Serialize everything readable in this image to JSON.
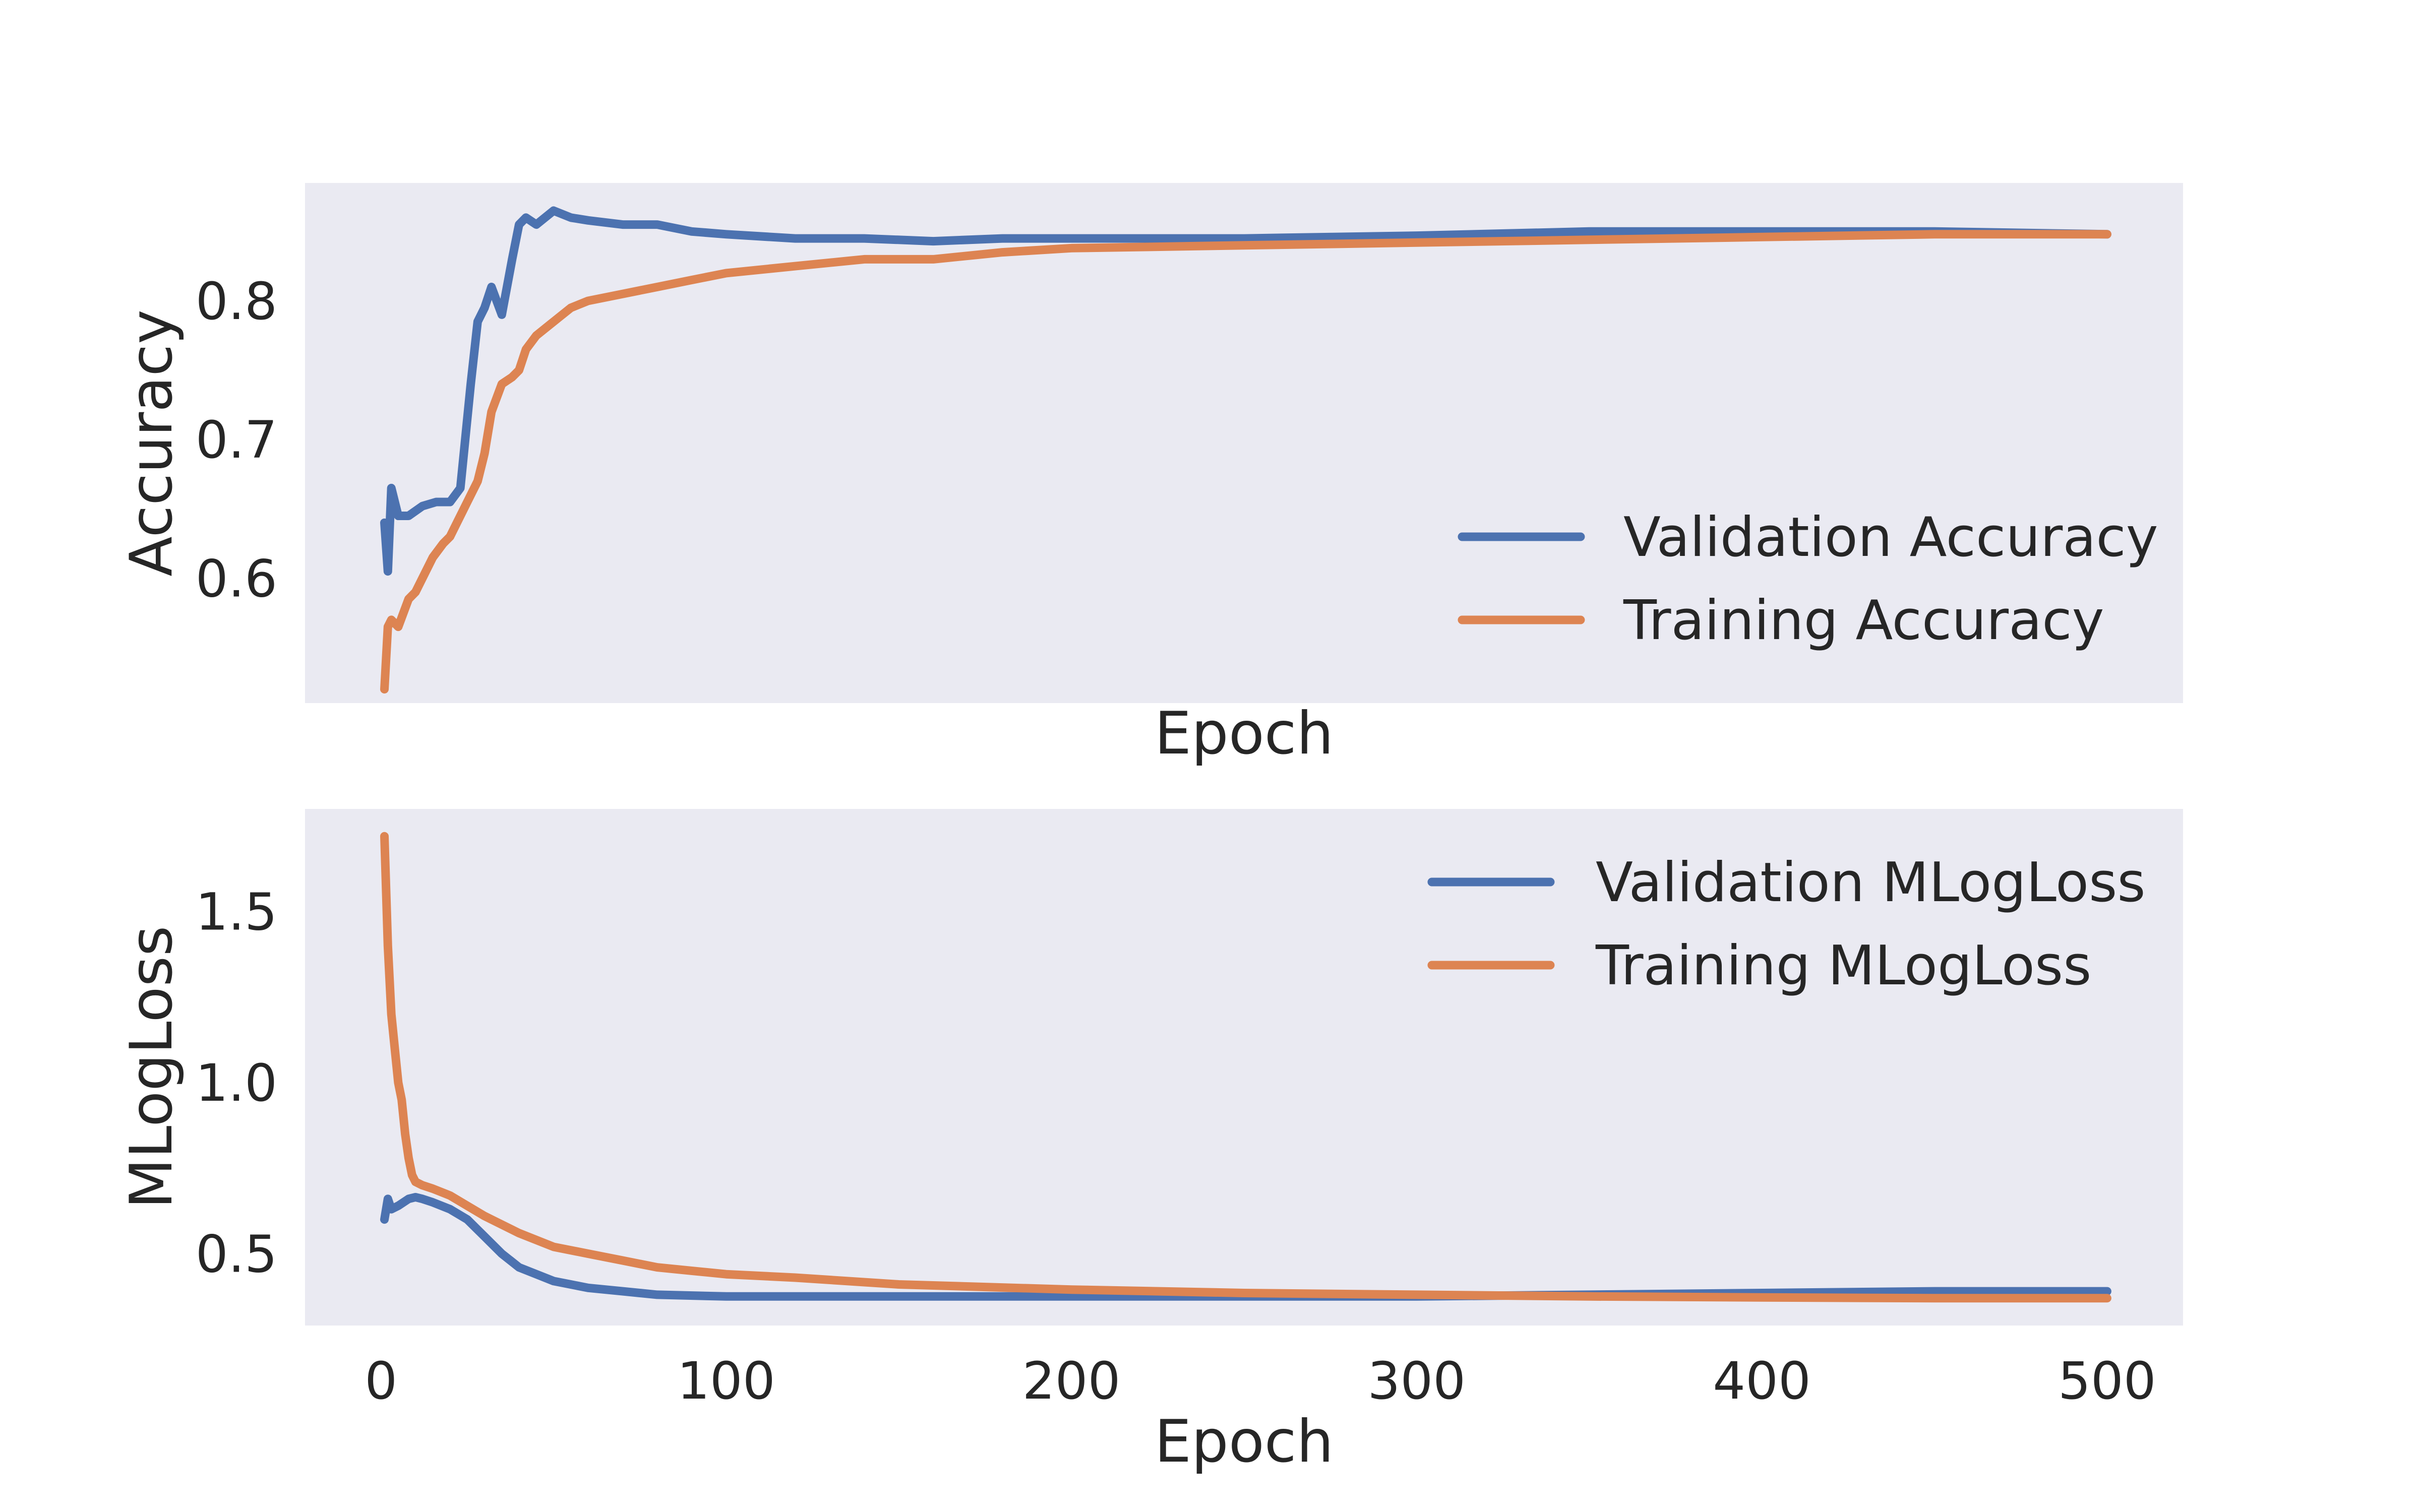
{
  "chart_data": [
    {
      "type": "line",
      "xlabel": "Epoch",
      "ylabel": "Accuracy",
      "xlim": [
        -22,
        522
      ],
      "ylim": [
        0.51,
        0.885
      ],
      "grid": false,
      "background": "#EAEAF2",
      "yticks": [
        0.6,
        0.7,
        0.8
      ],
      "ytick_labels": [
        "0.6",
        "0.7",
        "0.8"
      ],
      "x_tick_labels_shown": false,
      "legend": {
        "position": "lower-right",
        "entries": [
          "Validation Accuracy",
          "Training Accuracy"
        ]
      },
      "series": [
        {
          "name": "Validation Accuracy",
          "color": "#4C72B0",
          "x": [
            1,
            2,
            3,
            5,
            8,
            12,
            16,
            20,
            23,
            26,
            28,
            30,
            32,
            35,
            38,
            40,
            42,
            45,
            50,
            55,
            60,
            70,
            80,
            90,
            100,
            120,
            140,
            160,
            180,
            200,
            250,
            300,
            350,
            400,
            450,
            500
          ],
          "y": [
            0.64,
            0.605,
            0.665,
            0.645,
            0.645,
            0.652,
            0.655,
            0.655,
            0.665,
            0.74,
            0.785,
            0.795,
            0.81,
            0.79,
            0.83,
            0.855,
            0.86,
            0.855,
            0.865,
            0.86,
            0.858,
            0.855,
            0.855,
            0.85,
            0.848,
            0.845,
            0.845,
            0.843,
            0.845,
            0.845,
            0.845,
            0.847,
            0.85,
            0.85,
            0.85,
            0.848
          ]
        },
        {
          "name": "Training Accuracy",
          "color": "#DD8452",
          "x": [
            1,
            2,
            3,
            5,
            8,
            10,
            12,
            15,
            18,
            20,
            22,
            25,
            28,
            30,
            32,
            35,
            38,
            40,
            42,
            45,
            50,
            55,
            60,
            70,
            80,
            90,
            100,
            120,
            140,
            160,
            180,
            200,
            250,
            300,
            350,
            400,
            450,
            500
          ],
          "y": [
            0.52,
            0.565,
            0.57,
            0.565,
            0.585,
            0.59,
            0.6,
            0.615,
            0.625,
            0.63,
            0.64,
            0.655,
            0.67,
            0.69,
            0.72,
            0.74,
            0.745,
            0.75,
            0.765,
            0.775,
            0.785,
            0.795,
            0.8,
            0.805,
            0.81,
            0.815,
            0.82,
            0.825,
            0.83,
            0.83,
            0.835,
            0.838,
            0.84,
            0.842,
            0.844,
            0.846,
            0.848,
            0.848
          ]
        }
      ]
    },
    {
      "type": "line",
      "xlabel": "Epoch",
      "ylabel": "MLogLoss",
      "xlim": [
        -22,
        522
      ],
      "ylim": [
        0.29,
        1.8
      ],
      "grid": false,
      "background": "#EAEAF2",
      "xticks": [
        0,
        100,
        200,
        300,
        400,
        500
      ],
      "xtick_labels": [
        "0",
        "100",
        "200",
        "300",
        "400",
        "500"
      ],
      "yticks": [
        0.5,
        1.0,
        1.5
      ],
      "ytick_labels": [
        "0.5",
        "1.0",
        "1.5"
      ],
      "legend": {
        "position": "upper-right",
        "entries": [
          "Validation MLogLoss",
          "Training MLogLoss"
        ]
      },
      "series": [
        {
          "name": "Validation MLogLoss",
          "color": "#4C72B0",
          "x": [
            1,
            2,
            3,
            5,
            8,
            10,
            12,
            15,
            20,
            25,
            30,
            35,
            40,
            50,
            60,
            70,
            80,
            100,
            120,
            150,
            200,
            250,
            300,
            350,
            400,
            450,
            500
          ],
          "y": [
            0.6,
            0.66,
            0.63,
            0.64,
            0.66,
            0.665,
            0.66,
            0.65,
            0.63,
            0.6,
            0.55,
            0.5,
            0.46,
            0.42,
            0.4,
            0.39,
            0.38,
            0.375,
            0.375,
            0.375,
            0.375,
            0.375,
            0.375,
            0.38,
            0.385,
            0.39,
            0.39
          ]
        },
        {
          "name": "Training MLogLoss",
          "color": "#DD8452",
          "x": [
            1,
            2,
            3,
            4,
            5,
            6,
            7,
            8,
            9,
            10,
            12,
            15,
            20,
            25,
            30,
            40,
            50,
            60,
            70,
            80,
            90,
            100,
            120,
            150,
            200,
            250,
            300,
            350,
            400,
            450,
            500
          ],
          "y": [
            1.72,
            1.4,
            1.2,
            1.1,
            1.0,
            0.95,
            0.85,
            0.78,
            0.73,
            0.71,
            0.7,
            0.69,
            0.67,
            0.64,
            0.61,
            0.56,
            0.52,
            0.5,
            0.48,
            0.46,
            0.45,
            0.44,
            0.43,
            0.41,
            0.395,
            0.385,
            0.38,
            0.375,
            0.372,
            0.37,
            0.37
          ]
        }
      ]
    }
  ]
}
